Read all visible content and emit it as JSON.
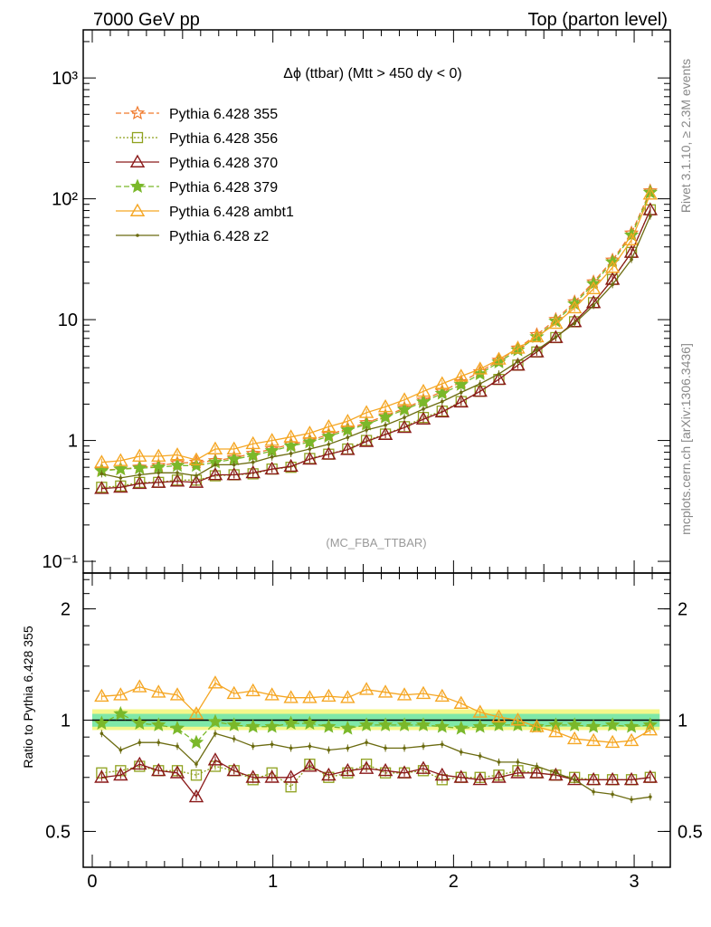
{
  "header": {
    "left": "7000 GeV pp",
    "right": "Top (parton level)"
  },
  "side": {
    "rivet": "Rivet 3.1.10, ≥ 2.3M events",
    "mcplots": "mcplots.cern.ch [arXiv:1306.3436]"
  },
  "chart_data": [
    {
      "type": "line",
      "title": "Δϕ (ttbar) (Mtt > 450 dy < 0)",
      "watermark": "(MC_FBA_TTBAR)",
      "xlabel": "",
      "ylabel": "",
      "yscale": "log",
      "xlim": [
        -0.05,
        3.2
      ],
      "ylim": [
        0.08,
        2500
      ],
      "xticks": [
        "0",
        "1",
        "2",
        "3"
      ],
      "yticks": [
        "10⁻¹",
        "1",
        "10",
        "10²",
        "10³"
      ],
      "legend_position": "top-left",
      "x": [
        0.052,
        0.157,
        0.262,
        0.367,
        0.471,
        0.576,
        0.681,
        0.785,
        0.89,
        0.995,
        1.1,
        1.204,
        1.309,
        1.414,
        1.518,
        1.623,
        1.728,
        1.833,
        1.937,
        2.042,
        2.147,
        2.251,
        2.356,
        2.461,
        2.566,
        2.67,
        2.775,
        2.88,
        2.985,
        3.089
      ],
      "series": [
        {
          "name": "Pythia 6.428 355",
          "color": "#f07a2c",
          "marker": "star-open",
          "dash": "dashed",
          "values": [
            0.57,
            0.58,
            0.6,
            0.62,
            0.65,
            0.66,
            0.68,
            0.72,
            0.78,
            0.85,
            0.93,
            1.0,
            1.12,
            1.25,
            1.4,
            1.6,
            1.85,
            2.15,
            2.55,
            3.05,
            3.7,
            4.6,
            5.8,
            7.5,
            10.0,
            14.0,
            20.5,
            31.0,
            52.0,
            116
          ]
        },
        {
          "name": "Pythia 6.428 356",
          "color": "#8fa11e",
          "marker": "square-open",
          "dash": "dotted",
          "values": [
            0.41,
            0.42,
            0.45,
            0.45,
            0.47,
            0.47,
            0.51,
            0.52,
            0.53,
            0.58,
            0.6,
            0.71,
            0.77,
            0.85,
            1.0,
            1.13,
            1.3,
            1.55,
            1.75,
            2.1,
            2.55,
            3.2,
            4.2,
            5.4,
            7.1,
            9.6,
            13.8,
            21.5,
            36.0,
            81
          ]
        },
        {
          "name": "Pythia 6.428 370",
          "color": "#8b1a1a",
          "marker": "triangle-open",
          "dash": "solid",
          "values": [
            0.4,
            0.41,
            0.44,
            0.45,
            0.46,
            0.45,
            0.52,
            0.52,
            0.54,
            0.58,
            0.61,
            0.7,
            0.77,
            0.84,
            0.98,
            1.12,
            1.28,
            1.5,
            1.72,
            2.08,
            2.55,
            3.2,
            4.2,
            5.4,
            7.1,
            9.6,
            13.8,
            21.5,
            36.0,
            81
          ]
        },
        {
          "name": "Pythia 6.428 379",
          "color": "#7ab82a",
          "marker": "star-filled",
          "dash": "dashed",
          "values": [
            0.56,
            0.58,
            0.59,
            0.6,
            0.62,
            0.62,
            0.66,
            0.7,
            0.75,
            0.82,
            0.9,
            0.97,
            1.08,
            1.22,
            1.36,
            1.56,
            1.8,
            2.08,
            2.45,
            2.9,
            3.55,
            4.45,
            5.6,
            7.2,
            9.7,
            13.5,
            19.8,
            30.0,
            50.0,
            113
          ]
        },
        {
          "name": "Pythia 6.428 ambt1",
          "color": "#f5a623",
          "marker": "triangle-open",
          "dash": "solid",
          "values": [
            0.66,
            0.68,
            0.74,
            0.74,
            0.76,
            0.69,
            0.85,
            0.85,
            0.94,
            1.0,
            1.07,
            1.15,
            1.3,
            1.44,
            1.7,
            1.9,
            2.17,
            2.55,
            2.95,
            3.4,
            3.9,
            4.7,
            5.8,
            7.2,
            9.3,
            12.5,
            18.0,
            27.0,
            45.6,
            109
          ]
        },
        {
          "name": "Pythia 6.428 z2",
          "color": "#6b6b10",
          "marker": "dot",
          "dash": "solid",
          "values": [
            0.53,
            0.49,
            0.52,
            0.54,
            0.54,
            0.51,
            0.63,
            0.63,
            0.66,
            0.73,
            0.78,
            0.85,
            0.93,
            1.06,
            1.22,
            1.34,
            1.55,
            1.82,
            2.1,
            2.5,
            2.95,
            3.55,
            4.5,
            5.6,
            7.2,
            9.3,
            13.1,
            19.5,
            31.5,
            72
          ]
        }
      ]
    },
    {
      "type": "line",
      "title": "",
      "xlabel": "",
      "ylabel": "Ratio to Pythia 6.428 355",
      "yscale": "log",
      "xlim": [
        -0.05,
        3.2
      ],
      "ylim": [
        0.4,
        2.5
      ],
      "xticks": [
        "0",
        "1",
        "2",
        "3"
      ],
      "yticks": [
        "0.5",
        "1",
        "2"
      ],
      "reference_band": {
        "inner": [
          0.96,
          1.04
        ],
        "outer": [
          0.94,
          1.07
        ],
        "inner_color": "#7fe8a8",
        "outer_color": "#f4f78a"
      },
      "x": [
        0.052,
        0.157,
        0.262,
        0.367,
        0.471,
        0.576,
        0.681,
        0.785,
        0.89,
        0.995,
        1.1,
        1.204,
        1.309,
        1.414,
        1.518,
        1.623,
        1.728,
        1.833,
        1.937,
        2.042,
        2.147,
        2.251,
        2.356,
        2.461,
        2.566,
        2.67,
        2.775,
        2.88,
        2.985,
        3.089
      ],
      "series": [
        {
          "name": "Pythia 6.428 356",
          "color": "#8fa11e",
          "marker": "square-open",
          "dash": "dotted",
          "values": [
            0.72,
            0.73,
            0.75,
            0.73,
            0.73,
            0.71,
            0.75,
            0.73,
            0.69,
            0.72,
            0.66,
            0.76,
            0.7,
            0.72,
            0.76,
            0.72,
            0.72,
            0.73,
            0.69,
            0.7,
            0.7,
            0.71,
            0.73,
            0.72,
            0.71,
            0.7,
            0.69,
            0.69,
            0.69,
            0.7
          ]
        },
        {
          "name": "Pythia 6.428 370",
          "color": "#8b1a1a",
          "marker": "triangle-open",
          "dash": "solid",
          "values": [
            0.7,
            0.71,
            0.76,
            0.73,
            0.72,
            0.62,
            0.78,
            0.73,
            0.7,
            0.7,
            0.7,
            0.75,
            0.71,
            0.73,
            0.74,
            0.73,
            0.72,
            0.74,
            0.71,
            0.7,
            0.69,
            0.7,
            0.72,
            0.72,
            0.71,
            0.69,
            0.69,
            0.69,
            0.69,
            0.7
          ]
        },
        {
          "name": "Pythia 6.428 379",
          "color": "#7ab82a",
          "marker": "star-filled",
          "dash": "dashed",
          "values": [
            0.98,
            1.04,
            0.98,
            0.97,
            0.95,
            0.87,
            0.99,
            0.97,
            0.96,
            0.96,
            0.98,
            0.98,
            0.96,
            0.95,
            0.97,
            0.97,
            0.97,
            0.97,
            0.96,
            0.95,
            0.96,
            0.97,
            0.97,
            0.96,
            0.97,
            0.97,
            0.96,
            0.97,
            0.96,
            0.97
          ]
        },
        {
          "name": "Pythia 6.428 ambt1",
          "color": "#f5a623",
          "marker": "triangle-open",
          "dash": "solid",
          "values": [
            1.16,
            1.17,
            1.23,
            1.19,
            1.17,
            1.04,
            1.26,
            1.18,
            1.2,
            1.17,
            1.15,
            1.15,
            1.16,
            1.15,
            1.21,
            1.19,
            1.17,
            1.18,
            1.16,
            1.11,
            1.05,
            1.02,
            1.0,
            0.96,
            0.93,
            0.89,
            0.88,
            0.87,
            0.88,
            0.94
          ]
        },
        {
          "name": "Pythia 6.428 z2",
          "color": "#6b6b10",
          "marker": "dot",
          "dash": "solid",
          "values": [
            0.92,
            0.83,
            0.87,
            0.87,
            0.85,
            0.76,
            0.92,
            0.89,
            0.85,
            0.86,
            0.84,
            0.85,
            0.83,
            0.84,
            0.87,
            0.84,
            0.84,
            0.85,
            0.86,
            0.82,
            0.8,
            0.77,
            0.77,
            0.75,
            0.72,
            0.69,
            0.64,
            0.63,
            0.61,
            0.62
          ]
        }
      ]
    }
  ]
}
